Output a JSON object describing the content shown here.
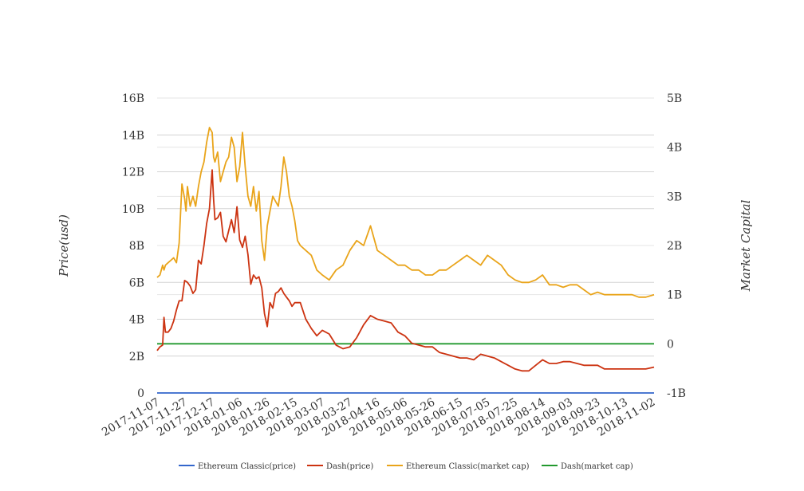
{
  "chart_data": {
    "type": "line",
    "dates": [
      "2017-11-07",
      "2017-11-27",
      "2017-12-17",
      "2018-01-06",
      "2018-01-26",
      "2018-02-15",
      "2018-03-07",
      "2018-03-27",
      "2018-04-16",
      "2018-05-06",
      "2018-05-26",
      "2018-06-15",
      "2018-07-05",
      "2018-07-25",
      "2018-08-14",
      "2018-09-03",
      "2018-09-23",
      "2018-10-13",
      "2018-11-02"
    ],
    "y_left": {
      "label": "Price(usd)",
      "range": [
        0,
        16000000000
      ],
      "ticks": [
        "0",
        "2B",
        "4B",
        "6B",
        "8B",
        "10B",
        "12B",
        "14B",
        "16B"
      ]
    },
    "y_right": {
      "label": "Market Capital",
      "range": [
        -1000000000,
        5000000000
      ],
      "ticks": [
        "-1B",
        "0",
        "1B",
        "2B",
        "3B",
        "4B",
        "5B"
      ]
    },
    "grid": true,
    "legend_position": "bottom",
    "series": [
      {
        "name": "Ethereum Classic(price)",
        "axis": "left",
        "color": "#3366cc",
        "x": [
          0,
          361
        ],
        "y": [
          20,
          20
        ]
      },
      {
        "name": "Dash(price)",
        "axis": "left",
        "color": "#cc3311",
        "x": [
          0,
          2,
          4,
          5,
          6,
          8,
          10,
          12,
          14,
          16,
          18,
          20,
          22,
          24,
          26,
          28,
          30,
          32,
          34,
          36,
          38,
          40,
          41,
          42,
          44,
          46,
          48,
          50,
          52,
          54,
          56,
          58,
          60,
          62,
          64,
          66,
          68,
          70,
          72,
          74,
          76,
          78,
          80,
          82,
          84,
          86,
          88,
          90,
          92,
          94,
          96,
          98,
          100,
          104,
          108,
          112,
          116,
          120,
          125,
          130,
          135,
          140,
          145,
          150,
          155,
          160,
          165,
          170,
          175,
          180,
          185,
          190,
          195,
          200,
          205,
          210,
          215,
          220,
          225,
          230,
          235,
          240,
          245,
          250,
          255,
          260,
          265,
          270,
          275,
          280,
          285,
          290,
          295,
          300,
          305,
          310,
          315,
          320,
          325,
          330,
          335,
          340,
          345,
          350,
          355,
          361
        ],
        "y": [
          2300000000,
          2500000000,
          2600000000,
          4100000000,
          3300000000,
          3300000000,
          3500000000,
          3900000000,
          4500000000,
          5000000000,
          5000000000,
          6100000000,
          6000000000,
          5800000000,
          5400000000,
          5600000000,
          7200000000,
          7000000000,
          8000000000,
          9200000000,
          10000000000,
          12100000000,
          10500000000,
          9400000000,
          9500000000,
          9800000000,
          8500000000,
          8200000000,
          8800000000,
          9400000000,
          8700000000,
          10100000000,
          8300000000,
          7900000000,
          8500000000,
          7500000000,
          5900000000,
          6400000000,
          6200000000,
          6300000000,
          5700000000,
          4300000000,
          3600000000,
          4900000000,
          4600000000,
          5400000000,
          5500000000,
          5700000000,
          5400000000,
          5200000000,
          5000000000,
          4700000000,
          4900000000,
          4900000000,
          4000000000,
          3500000000,
          3100000000,
          3400000000,
          3200000000,
          2600000000,
          2400000000,
          2500000000,
          3000000000,
          3700000000,
          4200000000,
          4000000000,
          3900000000,
          3800000000,
          3300000000,
          3100000000,
          2700000000,
          2600000000,
          2500000000,
          2500000000,
          2200000000,
          2100000000,
          2000000000,
          1900000000,
          1900000000,
          1800000000,
          2100000000,
          2000000000,
          1900000000,
          1700000000,
          1500000000,
          1300000000,
          1200000000,
          1200000000,
          1500000000,
          1800000000,
          1600000000,
          1600000000,
          1700000000,
          1700000000,
          1600000000,
          1500000000,
          1500000000,
          1500000000,
          1300000000,
          1300000000,
          1300000000,
          1300000000,
          1300000000,
          1300000000,
          1300000000,
          1400000000
        ]
      },
      {
        "name": "Ethereum Classic(market cap)",
        "axis": "right",
        "color": "#e9a41a",
        "x": [
          0,
          2,
          4,
          5,
          6,
          8,
          10,
          12,
          14,
          16,
          18,
          20,
          21,
          22,
          24,
          26,
          28,
          30,
          32,
          34,
          36,
          38,
          40,
          41,
          42,
          44,
          46,
          48,
          50,
          52,
          54,
          56,
          58,
          60,
          62,
          64,
          66,
          68,
          70,
          72,
          74,
          76,
          78,
          80,
          82,
          84,
          86,
          88,
          90,
          92,
          94,
          96,
          98,
          100,
          102,
          104,
          108,
          112,
          116,
          120,
          125,
          130,
          135,
          140,
          145,
          150,
          155,
          160,
          165,
          170,
          175,
          180,
          185,
          190,
          195,
          200,
          205,
          210,
          215,
          220,
          225,
          230,
          235,
          240,
          245,
          250,
          255,
          260,
          265,
          270,
          275,
          280,
          285,
          290,
          295,
          300,
          305,
          310,
          315,
          320,
          325,
          330,
          335,
          340,
          345,
          350,
          355,
          361
        ],
        "y": [
          1350000000,
          1400000000,
          1600000000,
          1500000000,
          1600000000,
          1650000000,
          1700000000,
          1750000000,
          1650000000,
          2050000000,
          3250000000,
          2950000000,
          2700000000,
          3200000000,
          2800000000,
          3000000000,
          2800000000,
          3200000000,
          3500000000,
          3700000000,
          4100000000,
          4400000000,
          4300000000,
          3800000000,
          3700000000,
          3900000000,
          3300000000,
          3500000000,
          3700000000,
          3800000000,
          4200000000,
          4000000000,
          3300000000,
          3600000000,
          4300000000,
          3600000000,
          3000000000,
          2800000000,
          3200000000,
          2700000000,
          3100000000,
          2100000000,
          1700000000,
          2400000000,
          2700000000,
          3000000000,
          2900000000,
          2800000000,
          3200000000,
          3800000000,
          3500000000,
          3000000000,
          2800000000,
          2500000000,
          2100000000,
          2000000000,
          1900000000,
          1800000000,
          1500000000,
          1400000000,
          1300000000,
          1500000000,
          1600000000,
          1900000000,
          2100000000,
          2000000000,
          2400000000,
          1900000000,
          1800000000,
          1700000000,
          1600000000,
          1600000000,
          1500000000,
          1500000000,
          1400000000,
          1400000000,
          1500000000,
          1500000000,
          1600000000,
          1700000000,
          1800000000,
          1700000000,
          1600000000,
          1800000000,
          1700000000,
          1600000000,
          1400000000,
          1300000000,
          1250000000,
          1250000000,
          1300000000,
          1400000000,
          1200000000,
          1200000000,
          1150000000,
          1200000000,
          1200000000,
          1100000000,
          1000000000,
          1050000000,
          1000000000,
          1000000000,
          1000000000,
          1000000000,
          1000000000,
          950000000,
          950000000,
          1000000000
        ]
      },
      {
        "name": "Dash(market cap)",
        "axis": "right",
        "color": "#22992e",
        "x": [
          0,
          361
        ],
        "y": [
          0,
          0
        ]
      }
    ]
  }
}
